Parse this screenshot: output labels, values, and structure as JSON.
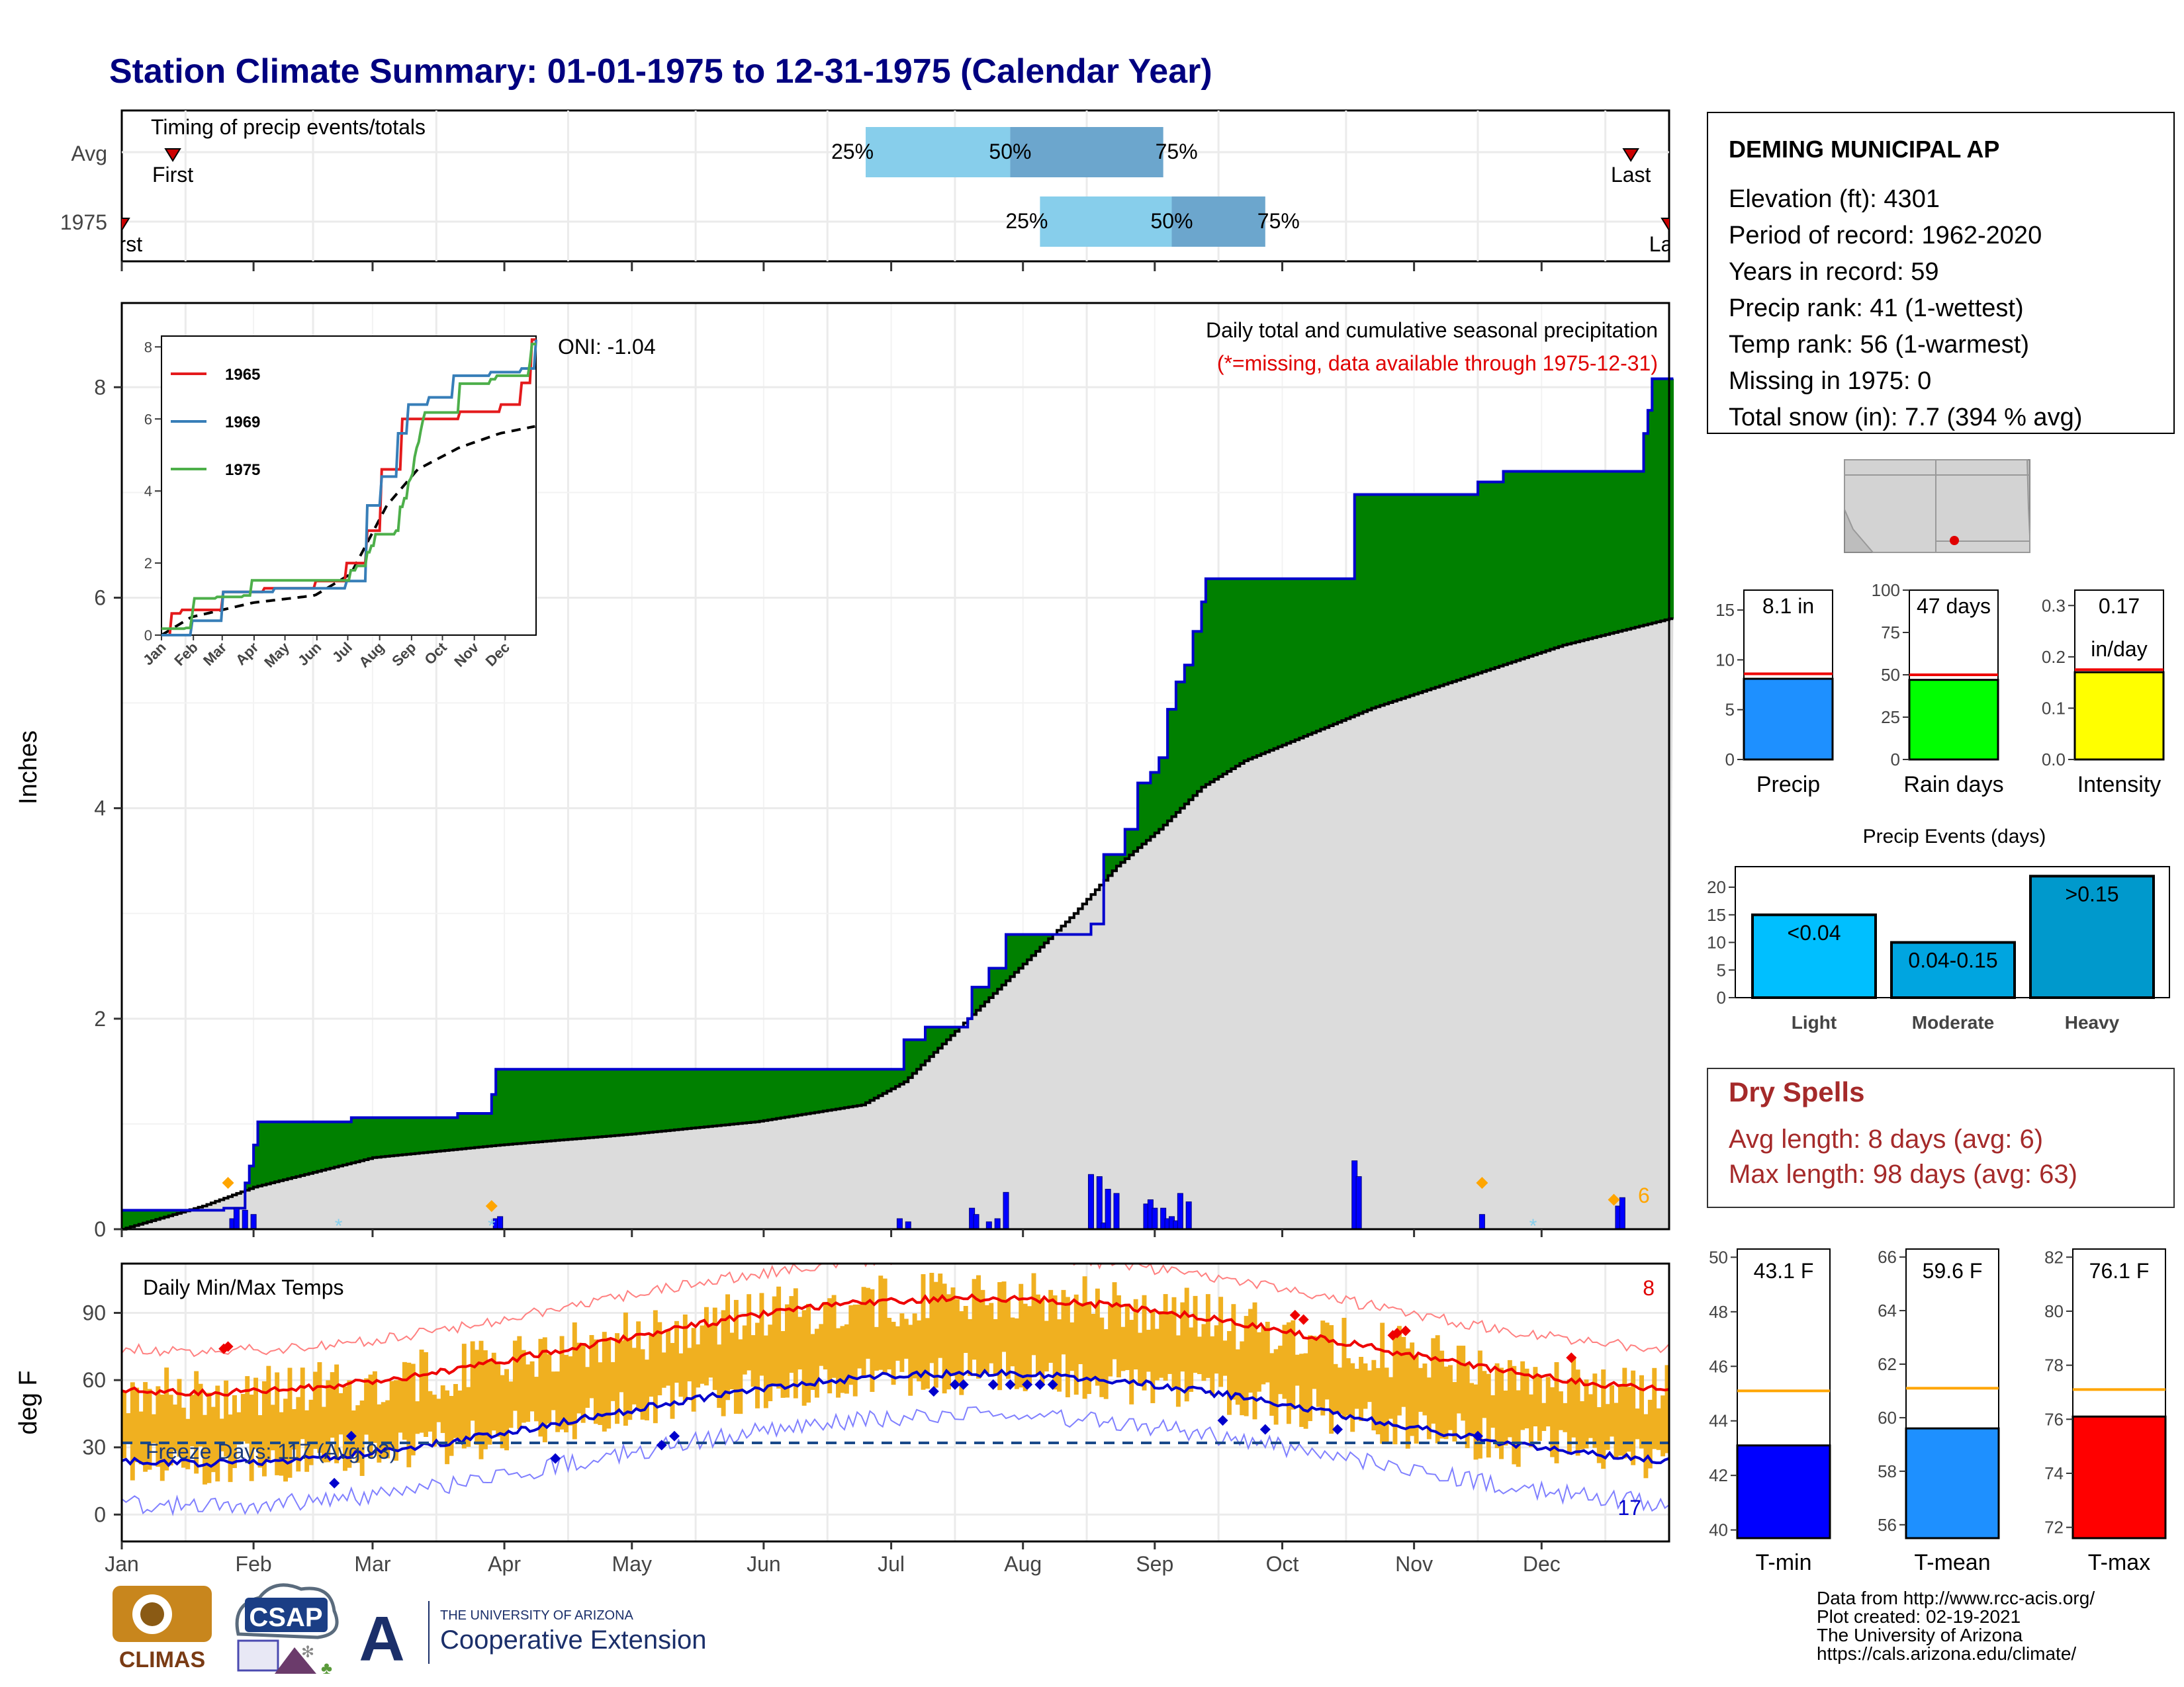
{
  "title": "Station Climate Summary: 01-01-1975 to 12-31-1975 (Calendar Year)",
  "timing_panel": {
    "label": "Timing of precip events/totals",
    "rows": [
      {
        "name": "Avg",
        "first_label": "First",
        "last_label": "Last",
        "p25": "25%",
        "p50": "50%",
        "p75": "75%",
        "first_day": 13,
        "last_day": 356,
        "p25_day": 176,
        "p50_day": 210,
        "p75_day": 246
      },
      {
        "name": "1975",
        "first_label": "First",
        "last_label": "Last",
        "p25": "25%",
        "p50": "50%",
        "p75": "75%",
        "first_day": 1,
        "last_day": 365,
        "p25_day": 217,
        "p50_day": 248,
        "p75_day": 270
      }
    ],
    "colors": {
      "light": "#87CEEB",
      "dark": "#6CA6CD"
    }
  },
  "station": {
    "name": "DEMING MUNICIPAL AP",
    "lines": [
      "Elevation (ft): 4301",
      "Period of record: 1962-2020",
      "Years in record: 59",
      "Precip rank: 41 (1-wettest)",
      "Temp rank: 56 (1-warmest)",
      "Missing in 1975: 0",
      "Total snow (in): 7.7 (394 % avg)"
    ]
  },
  "precip_chart": {
    "ylabel": "Inches",
    "oni": "ONI: -1.04",
    "caption": "Daily total and cumulative seasonal precipitation",
    "caption_note": "(*=missing, data available through 1975-12-31)",
    "side_label": "6",
    "yticks": [
      "0",
      "2",
      "4",
      "6",
      "8"
    ],
    "ylim": [
      0,
      8.8
    ],
    "xlim": [
      1,
      365
    ]
  },
  "inset": {
    "legend": [
      "1965",
      "1969",
      "1975"
    ],
    "colors": [
      "#e41a1c",
      "#377eb8",
      "#4daf4a"
    ],
    "yticks": [
      "0",
      "2",
      "4",
      "6",
      "8"
    ],
    "xticks": [
      "Jan",
      "Feb",
      "Mar",
      "Apr",
      "May",
      "Jun",
      "Jul",
      "Aug",
      "Sep",
      "Oct",
      "Nov",
      "Dec"
    ]
  },
  "temp_chart": {
    "ylabel": "deg F",
    "label": "Daily Min/Max Temps",
    "freeze": "Freeze Days: 117 (Avg:93)",
    "count_hot": "8",
    "count_cold": "17",
    "yticks": [
      "0",
      "30",
      "60",
      "90"
    ],
    "ylim": [
      -12,
      112
    ],
    "freeze_line": 32
  },
  "months": [
    "Jan",
    "Feb",
    "Mar",
    "Apr",
    "May",
    "Jun",
    "Jul",
    "Aug",
    "Sep",
    "Oct",
    "Nov",
    "Dec"
  ],
  "summary_bars": [
    {
      "label": "Precip",
      "value_text": "8.1 in",
      "value": 8.1,
      "avg": 8.6,
      "ymax": 17,
      "yticks": [
        "0",
        "5",
        "10",
        "15"
      ],
      "color": "#1E90FF"
    },
    {
      "label": "Rain days",
      "value_text": "47 days",
      "value": 47,
      "avg": 50,
      "ymax": 100,
      "yticks": [
        "0",
        "25",
        "50",
        "75",
        "100"
      ],
      "color": "#00FF00"
    },
    {
      "label": "Intensity",
      "value_text": "0.17",
      "value_text2": "in/day",
      "value": 0.17,
      "avg": 0.175,
      "ymax": 0.33,
      "yticks": [
        "0.0",
        "0.1",
        "0.2",
        "0.3"
      ],
      "color": "#FFFF00"
    }
  ],
  "precip_events": {
    "title": "Precip Events (days)",
    "categories": [
      "Light",
      "Moderate",
      "Heavy"
    ],
    "labels": [
      "<0.04",
      "0.04-0.15",
      ">0.15"
    ],
    "values": [
      15,
      10,
      22
    ],
    "ymax": 23,
    "yticks": [
      "0",
      "5",
      "10",
      "15",
      "20"
    ],
    "colors": [
      "#00BFFF",
      "#00A5E0",
      "#0099CC"
    ]
  },
  "dry_spells": {
    "title": "Dry Spells",
    "avg_line": "Avg length: 8 days (avg: 6)",
    "max_line": "Max length: 98 days (avg: 63)"
  },
  "temp_bars": [
    {
      "label": "T-min",
      "value_text": "43.1 F",
      "value": 43.1,
      "avg": 45.1,
      "ymin": 39.7,
      "ymax": 50.3,
      "yticks": [
        "40",
        "42",
        "44",
        "46",
        "48",
        "50"
      ],
      "color": "#0000FF"
    },
    {
      "label": "T-mean",
      "value_text": "59.6 F",
      "value": 59.6,
      "avg": 61.1,
      "ymin": 55.5,
      "ymax": 66.3,
      "yticks": [
        "56",
        "58",
        "60",
        "62",
        "64",
        "66"
      ],
      "color": "#1E90FF"
    },
    {
      "label": "T-max",
      "value_text": "76.1 F",
      "value": 76.1,
      "avg": 77.1,
      "ymin": 71.6,
      "ymax": 82.3,
      "yticks": [
        "72",
        "74",
        "76",
        "78",
        "80",
        "82"
      ],
      "color": "#FF0000"
    }
  ],
  "credits": [
    "Data from http://www.rcc-acis.org/",
    "Plot created: 02-19-2021",
    "The University of Arizona",
    "https://cals.arizona.edu/climate/"
  ],
  "logos": {
    "climas": "CLIMAS",
    "csap": "CSAP",
    "ua_small": "THE UNIVERSITY OF ARIZONA",
    "ua_big": "Cooperative Extension"
  },
  "chart_data": {
    "type": "area",
    "title": "Station Climate Summary: 01-01-1975 to 12-31-1975 (Calendar Year)",
    "ylabel": "Inches",
    "x_unit": "day of year",
    "series": [
      {
        "name": "cumulative_1975",
        "points": [
          [
            1,
            0.18
          ],
          [
            25,
            0.2
          ],
          [
            30,
            0.44
          ],
          [
            31,
            0.6
          ],
          [
            32,
            0.8
          ],
          [
            33,
            1.02
          ],
          [
            55,
            1.06
          ],
          [
            80,
            1.1
          ],
          [
            88,
            1.28
          ],
          [
            89,
            1.52
          ],
          [
            110,
            1.52
          ],
          [
            180,
            1.52
          ],
          [
            185,
            1.8
          ],
          [
            190,
            1.92
          ],
          [
            198,
            1.92
          ],
          [
            200,
            2.0
          ],
          [
            201,
            2.3
          ],
          [
            205,
            2.48
          ],
          [
            209,
            2.8
          ],
          [
            228,
            2.8
          ],
          [
            229,
            2.9
          ],
          [
            232,
            3.56
          ],
          [
            237,
            3.8
          ],
          [
            240,
            4.24
          ],
          [
            243,
            4.34
          ],
          [
            245,
            4.48
          ],
          [
            247,
            4.94
          ],
          [
            249,
            5.2
          ],
          [
            251,
            5.36
          ],
          [
            253,
            5.68
          ],
          [
            255,
            5.96
          ],
          [
            256,
            6.18
          ],
          [
            280,
            6.18
          ],
          [
            290,
            6.18
          ],
          [
            291,
            6.98
          ],
          [
            320,
            7.1
          ],
          [
            325,
            7.1
          ],
          [
            326,
            7.2
          ],
          [
            358,
            7.2
          ],
          [
            359,
            7.56
          ],
          [
            360,
            7.78
          ],
          [
            361,
            8.08
          ],
          [
            365,
            8.08
          ]
        ]
      },
      {
        "name": "cumulative_avg",
        "points": [
          [
            1,
            0
          ],
          [
            20,
            0.22
          ],
          [
            32,
            0.4
          ],
          [
            60,
            0.68
          ],
          [
            90,
            0.8
          ],
          [
            120,
            0.9
          ],
          [
            150,
            1.02
          ],
          [
            175,
            1.18
          ],
          [
            185,
            1.4
          ],
          [
            195,
            1.8
          ],
          [
            205,
            2.2
          ],
          [
            215,
            2.6
          ],
          [
            225,
            3.0
          ],
          [
            235,
            3.45
          ],
          [
            245,
            3.8
          ],
          [
            255,
            4.2
          ],
          [
            265,
            4.45
          ],
          [
            280,
            4.7
          ],
          [
            295,
            4.95
          ],
          [
            310,
            5.15
          ],
          [
            325,
            5.35
          ],
          [
            340,
            5.55
          ],
          [
            365,
            5.8
          ]
        ]
      }
    ],
    "daily_precip": [
      [
        27,
        0.1
      ],
      [
        28,
        0.2
      ],
      [
        30,
        0.18
      ],
      [
        32,
        0.14
      ],
      [
        89,
        0.1
      ],
      [
        90,
        0.12
      ],
      [
        184,
        0.1
      ],
      [
        186,
        0.07
      ],
      [
        201,
        0.2
      ],
      [
        202,
        0.14
      ],
      [
        205,
        0.07
      ],
      [
        207,
        0.1
      ],
      [
        209,
        0.35
      ],
      [
        229,
        0.52
      ],
      [
        231,
        0.5
      ],
      [
        232,
        0.06
      ],
      [
        233,
        0.38
      ],
      [
        235,
        0.34
      ],
      [
        242,
        0.24
      ],
      [
        243,
        0.28
      ],
      [
        244,
        0.2
      ],
      [
        246,
        0.2
      ],
      [
        247,
        0.1
      ],
      [
        248,
        0.12
      ],
      [
        249,
        0.08
      ],
      [
        250,
        0.34
      ],
      [
        252,
        0.26
      ],
      [
        291,
        0.65
      ],
      [
        292,
        0.5
      ],
      [
        321,
        0.14
      ],
      [
        353,
        0.22
      ],
      [
        354,
        0.3
      ]
    ],
    "markers": {
      "snow_days": [
        26,
        88,
        321,
        352
      ],
      "asterisk_days": [
        52,
        88,
        333
      ]
    }
  }
}
